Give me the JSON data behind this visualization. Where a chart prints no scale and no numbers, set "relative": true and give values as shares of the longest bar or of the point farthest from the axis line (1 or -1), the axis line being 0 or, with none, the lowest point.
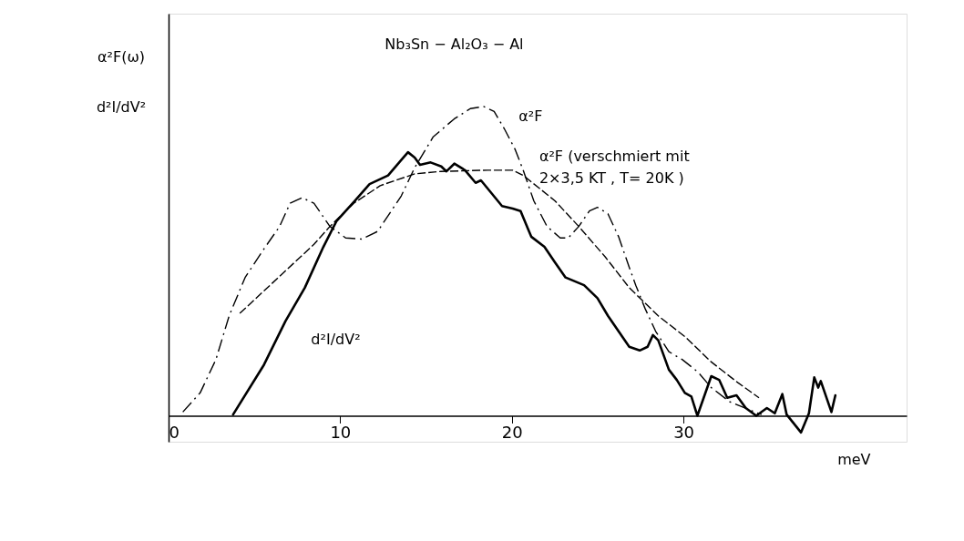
{
  "chart_data": {
    "type": "line",
    "title": "Nb₃Sn − Al₂O₃ − Al",
    "xlabel": "meV",
    "ylabel": "α²F(ω)\nd²I/dV²",
    "relative": true,
    "xlim": [
      0,
      43
    ],
    "xticks": [
      0,
      10,
      20,
      30
    ],
    "series": [
      {
        "name": "α²F",
        "color": "#000000",
        "line_style": "dashdot",
        "x": [
          0.83,
          1.84,
          2.76,
          3.53,
          4.46,
          5.54,
          6.47,
          7.08,
          7.78,
          8.47,
          9.4,
          10.32,
          11.25,
          12.18,
          13.56,
          14.34,
          15.42,
          16.65,
          17.58,
          18.35,
          18.97,
          19.58,
          20.2,
          20.66,
          21.28,
          22.05,
          22.82,
          23.29,
          23.9,
          24.52,
          24.99,
          25.6,
          26.22,
          26.84,
          27.22,
          27.76,
          28.38,
          29.15,
          29.92,
          30.85,
          31.62,
          32.7,
          33.94,
          34.55
        ],
        "values": [
          0.012,
          0.074,
          0.182,
          0.323,
          0.447,
          0.538,
          0.612,
          0.687,
          0.705,
          0.687,
          0.612,
          0.575,
          0.571,
          0.596,
          0.711,
          0.802,
          0.902,
          0.96,
          0.993,
          1.0,
          0.984,
          0.926,
          0.86,
          0.794,
          0.695,
          0.612,
          0.575,
          0.575,
          0.612,
          0.662,
          0.674,
          0.653,
          0.579,
          0.48,
          0.422,
          0.347,
          0.273,
          0.207,
          0.182,
          0.141,
          0.091,
          0.045,
          0.017,
          0.004
        ]
      },
      {
        "name": "α²F (verschmiert mit\n2×3,5 KT , T= 20K )",
        "color": "#000000",
        "line_style": "dashed",
        "x": [
          4.15,
          8.47,
          9.4,
          10.79,
          12.33,
          14.34,
          15.87,
          18.59,
          20.05,
          20.66,
          21.59,
          22.51,
          23.9,
          25.45,
          26.84,
          28.53,
          30.08,
          31.62,
          33.17,
          34.4
        ],
        "values": [
          0.331,
          0.554,
          0.612,
          0.687,
          0.744,
          0.782,
          0.79,
          0.794,
          0.794,
          0.777,
          0.736,
          0.695,
          0.612,
          0.513,
          0.414,
          0.323,
          0.256,
          0.174,
          0.107,
          0.058
        ]
      },
      {
        "name": "d²I/dV²",
        "color": "#000000",
        "line_style": "solid",
        "x": [
          3.76,
          5.56,
          6.81,
          7.94,
          9.02,
          9.78,
          10.86,
          11.71,
          12.79,
          13.56,
          13.95,
          14.34,
          14.65,
          15.27,
          15.89,
          16.19,
          16.65,
          17.27,
          17.89,
          18.2,
          18.81,
          19.43,
          20.05,
          20.51,
          21.13,
          21.9,
          22.51,
          23.13,
          24.21,
          24.99,
          25.6,
          26.22,
          26.84,
          27.45,
          27.91,
          28.22,
          28.53,
          29.15,
          29.61,
          30.08,
          30.46,
          30.81,
          31.62,
          32.08,
          32.55,
          33.09,
          33.63,
          34.24,
          34.86,
          35.32,
          35.76,
          36.01,
          36.85,
          37.31,
          37.62,
          37.85,
          38.0,
          38.62,
          38.85
        ],
        "values": [
          0.004,
          0.165,
          0.306,
          0.414,
          0.546,
          0.629,
          0.695,
          0.749,
          0.777,
          0.827,
          0.852,
          0.835,
          0.811,
          0.819,
          0.806,
          0.79,
          0.815,
          0.794,
          0.753,
          0.761,
          0.72,
          0.678,
          0.67,
          0.662,
          0.579,
          0.546,
          0.496,
          0.447,
          0.422,
          0.38,
          0.323,
          0.273,
          0.223,
          0.211,
          0.223,
          0.261,
          0.244,
          0.149,
          0.116,
          0.074,
          0.062,
          0.0,
          0.128,
          0.116,
          0.058,
          0.066,
          0.025,
          0.0,
          0.025,
          0.008,
          0.07,
          0.004,
          -0.054,
          0.008,
          0.124,
          0.091,
          0.112,
          0.012,
          0.066
        ]
      }
    ]
  }
}
